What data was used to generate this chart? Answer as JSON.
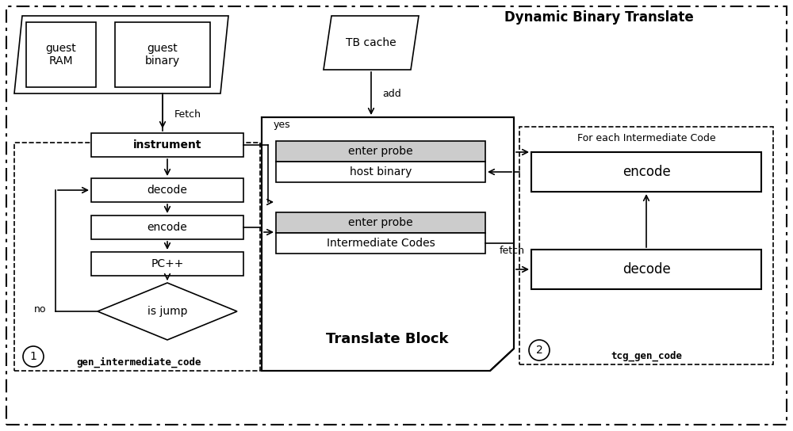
{
  "fig_width": 10.0,
  "fig_height": 5.44,
  "bg_color": "#ffffff",
  "title": "Dynamic Binary Translate",
  "label1": "gen_intermediate_code",
  "label2": "tcg_gen_code"
}
